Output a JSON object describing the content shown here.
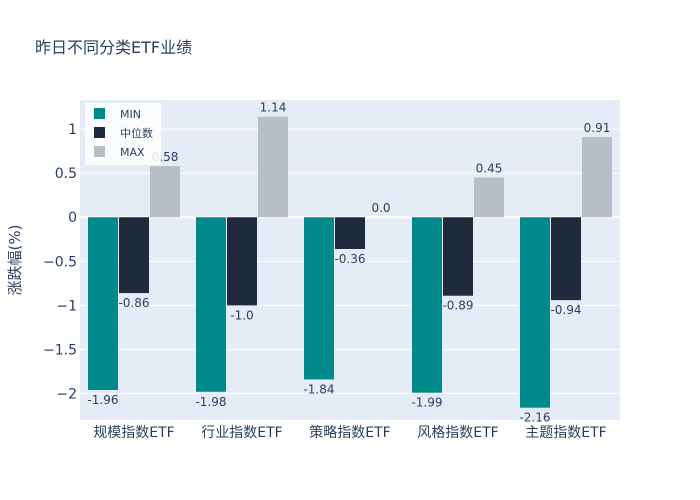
{
  "chart_data": {
    "type": "bar",
    "title": "昨日不同分类ETF业绩",
    "xlabel": "",
    "ylabel": "涨跌幅(%)",
    "ylim": [
      -2.3,
      1.33
    ],
    "yticks": [
      1,
      0.5,
      0,
      -0.5,
      -1,
      -1.5,
      -2
    ],
    "ytick_labels": [
      "1",
      "0.5",
      "0",
      "−0.5",
      "−1",
      "−1.5",
      "−2"
    ],
    "grid": true,
    "legend_position": "top-left",
    "categories": [
      "规模指数ETF",
      "行业指数ETF",
      "策略指数ETF",
      "风格指数ETF",
      "主题指数ETF"
    ],
    "series": [
      {
        "name": "MIN",
        "color": "#00898a",
        "values": [
          -1.96,
          -1.98,
          -1.84,
          -1.99,
          -2.16
        ],
        "labels": [
          "-1.96",
          "-1.98",
          "-1.84",
          "-1.99",
          "-2.16"
        ]
      },
      {
        "name": "中位数",
        "color": "#1f2a3c",
        "values": [
          -0.86,
          -1.0,
          -0.36,
          -0.89,
          -0.94
        ],
        "labels": [
          "-0.86",
          "-1.0",
          "-0.36",
          "-0.89",
          "-0.94"
        ]
      },
      {
        "name": "MAX",
        "color": "#b7bec6",
        "values": [
          0.58,
          1.14,
          0.0,
          0.45,
          0.91
        ],
        "labels": [
          "0.58",
          "1.14",
          "0.0",
          "0.45",
          "0.91"
        ]
      }
    ]
  }
}
